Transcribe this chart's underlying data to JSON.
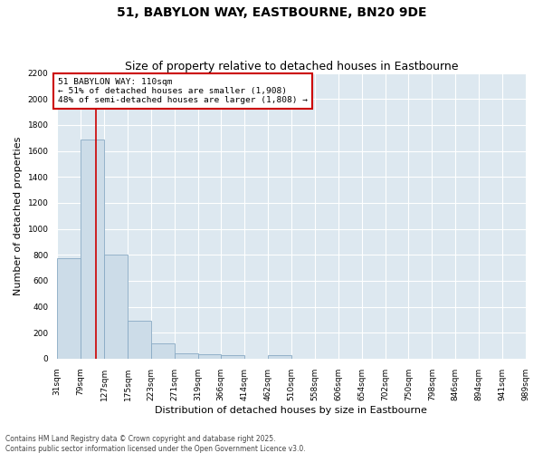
{
  "title": "51, BABYLON WAY, EASTBOURNE, BN20 9DE",
  "subtitle": "Size of property relative to detached houses in Eastbourne",
  "xlabel": "Distribution of detached houses by size in Eastbourne",
  "ylabel": "Number of detached properties",
  "bin_edges": [
    31,
    79,
    127,
    175,
    223,
    271,
    319,
    366,
    414,
    462,
    510,
    558,
    606,
    654,
    702,
    750,
    798,
    846,
    894,
    941,
    989
  ],
  "bar_heights": [
    775,
    1690,
    800,
    295,
    120,
    40,
    35,
    25,
    0,
    30,
    0,
    0,
    0,
    0,
    0,
    0,
    0,
    0,
    0,
    0
  ],
  "bar_color": "#ccdce8",
  "bar_edgecolor": "#88aac4",
  "property_size": 110,
  "vline_color": "#cc0000",
  "annotation_line1": "51 BABYLON WAY: 110sqm",
  "annotation_line2": "← 51% of detached houses are smaller (1,908)",
  "annotation_line3": "48% of semi-detached houses are larger (1,808) →",
  "annotation_box_color": "#cc0000",
  "ylim": [
    0,
    2200
  ],
  "yticks": [
    0,
    200,
    400,
    600,
    800,
    1000,
    1200,
    1400,
    1600,
    1800,
    2000,
    2200
  ],
  "background_color": "#dde8f0",
  "grid_color": "#ffffff",
  "fig_background": "#ffffff",
  "footer_line1": "Contains HM Land Registry data © Crown copyright and database right 2025.",
  "footer_line2": "Contains public sector information licensed under the Open Government Licence v3.0.",
  "title_fontsize": 10,
  "subtitle_fontsize": 9,
  "tick_label_fontsize": 6.5,
  "ylabel_fontsize": 8,
  "xlabel_fontsize": 8,
  "footer_fontsize": 5.5
}
